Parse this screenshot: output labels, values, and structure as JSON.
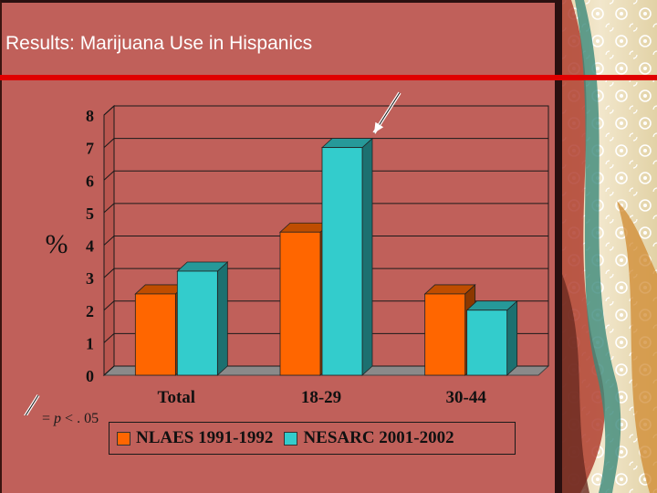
{
  "slide": {
    "title": "Results:  Marijuana Use in Hispanics",
    "significance_note": {
      "symbol": "=",
      "p_label": "p",
      "operator": "<",
      "value": ". 05"
    }
  },
  "colors": {
    "background": "#c0605a",
    "title_rule": "#e00000",
    "series_nlaes": "#ff6600",
    "series_nesarc": "#33cccc"
  },
  "chart_data": {
    "type": "bar",
    "categories": [
      "Total",
      "18-29",
      "30-44"
    ],
    "series": [
      {
        "name": "NLAES 1991-1992",
        "values": [
          2.5,
          4.4,
          2.5
        ],
        "color": "#ff6600"
      },
      {
        "name": "NESARC 2001-2002",
        "values": [
          3.2,
          7.0,
          2.0
        ],
        "color": "#33cccc"
      }
    ],
    "ylabel": "%",
    "ylim": [
      0,
      8
    ],
    "yticks": [
      "0",
      "1",
      "2",
      "3",
      "4",
      "5",
      "6",
      "7",
      "8"
    ],
    "grid": true,
    "legend": "bottom",
    "significant": [
      {
        "category": "18-29",
        "series": "NESARC 2001-2002"
      }
    ]
  }
}
